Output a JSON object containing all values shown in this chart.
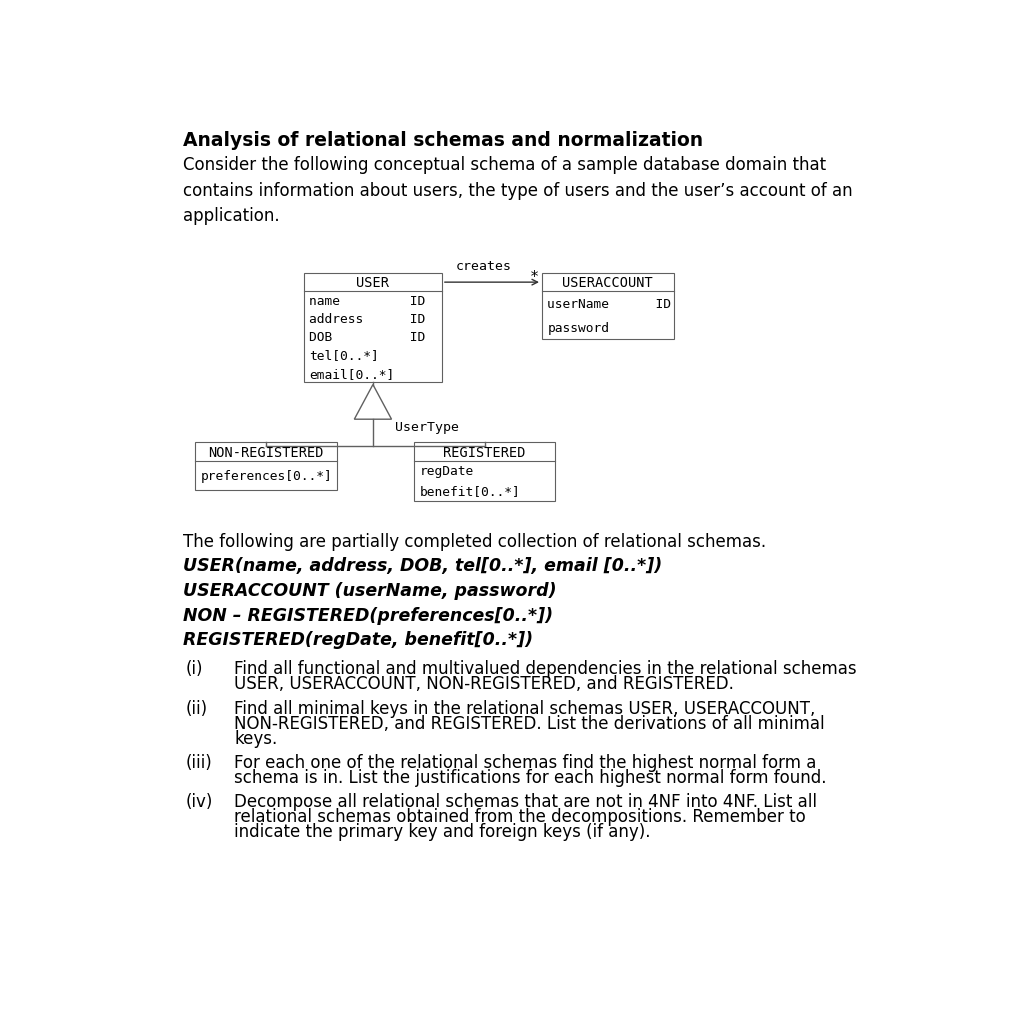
{
  "title": "Analysis of relational schemas and normalization",
  "intro_text": "Consider the following conceptual schema of a sample database domain that\ncontains information about users, the type of users and the user’s account of an\napplication.",
  "schemas_intro": "The following are partially completed collection of relational schemas.",
  "schema1": "USER(name, address, DOB, tel[0..*], email [0..*])",
  "schema2": "USERACCOUNT (userName, password)",
  "schema3": "NON – REGISTERED(preferences[0..*])",
  "schema4": "REGISTERED(regDate, benefit[0..*])",
  "bg_color": "#ffffff",
  "text_color": "#000000"
}
